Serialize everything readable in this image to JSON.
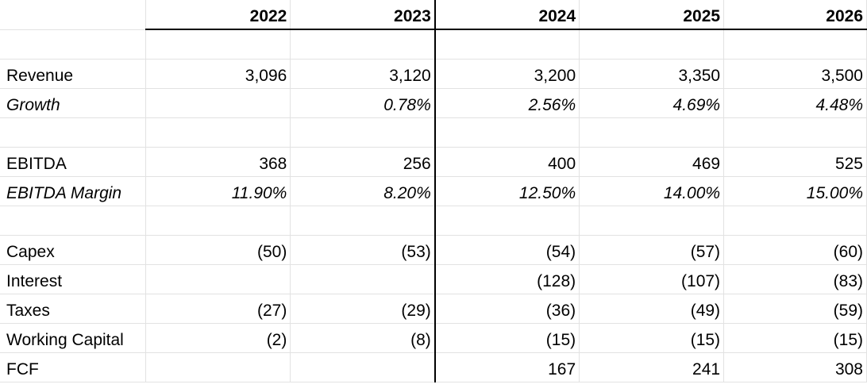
{
  "years": [
    "2022",
    "2023",
    "2024",
    "2025",
    "2026"
  ],
  "rows": {
    "revenue": {
      "label": "Revenue",
      "values": [
        "3,096",
        "3,120",
        "3,200",
        "3,350",
        "3,500"
      ]
    },
    "growth": {
      "label": "Growth",
      "values": [
        "",
        "0.78%",
        "2.56%",
        "4.69%",
        "4.48%"
      ]
    },
    "ebitda": {
      "label": "EBITDA",
      "values": [
        "368",
        "256",
        "400",
        "469",
        "525"
      ]
    },
    "margin": {
      "label": "EBITDA Margin",
      "values": [
        "11.90%",
        "8.20%",
        "12.50%",
        "14.00%",
        "15.00%"
      ]
    },
    "capex": {
      "label": "Capex",
      "values": [
        "(50)",
        "(53)",
        "(54)",
        "(57)",
        "(60)"
      ]
    },
    "interest": {
      "label": "Interest",
      "values": [
        "",
        "",
        "(128)",
        "(107)",
        "(83)"
      ]
    },
    "taxes": {
      "label": "Taxes",
      "values": [
        "(27)",
        "(29)",
        "(36)",
        "(49)",
        "(59)"
      ]
    },
    "wc": {
      "label": "Working Capital",
      "values": [
        "(2)",
        "(8)",
        "(15)",
        "(15)",
        "(15)"
      ]
    },
    "fcf": {
      "label": "FCF",
      "values": [
        "",
        "",
        "167",
        "241",
        "308"
      ]
    }
  }
}
